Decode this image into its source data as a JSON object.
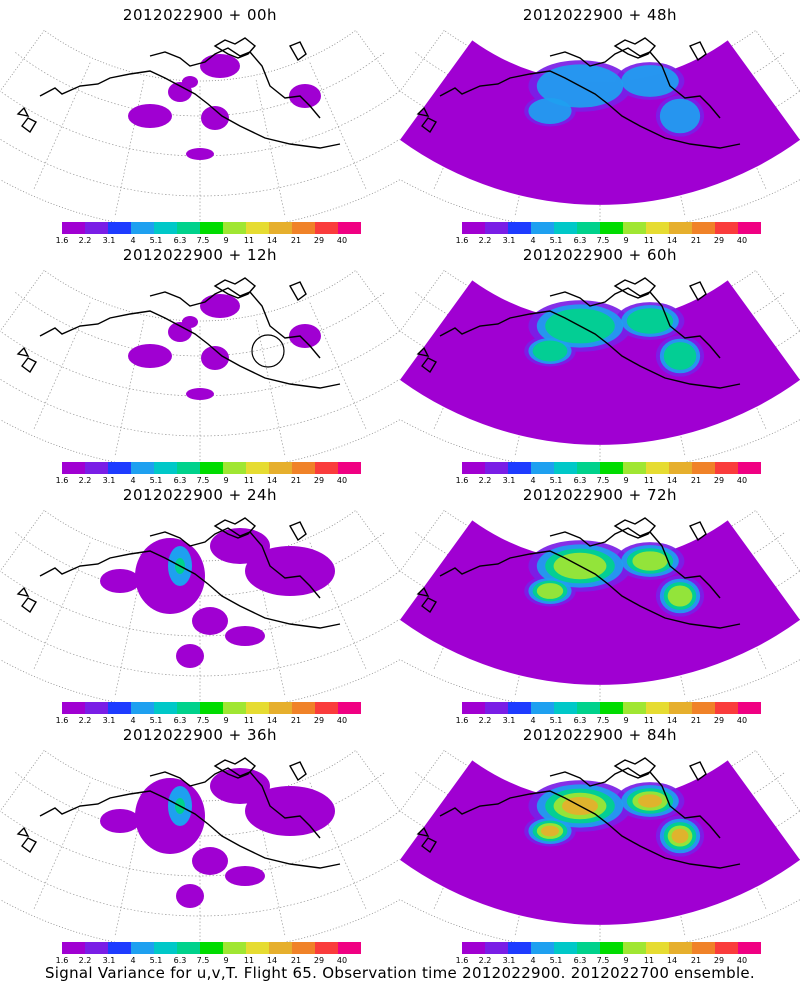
{
  "footer": "Signal Variance for u,v,T. Flight 65. Observation time 2012022900. 2012022700 ensemble.",
  "colorbar": {
    "labels": [
      "1.6",
      "2.2",
      "3.1",
      "4",
      "5.1",
      "6.3",
      "7.5",
      "9",
      "11",
      "14",
      "21",
      "29",
      "40"
    ],
    "colors": [
      "#a000d2",
      "#7a1ee6",
      "#1e3cff",
      "#1ea0f0",
      "#00c8c8",
      "#00d28c",
      "#00dc00",
      "#a0e632",
      "#e6dc32",
      "#e6af2d",
      "#f08228",
      "#fa3c3c",
      "#f00082"
    ]
  },
  "panels": [
    {
      "title": "2012022900 + 00h",
      "intensity": 0
    },
    {
      "title": "2012022900 + 48h",
      "intensity": 2
    },
    {
      "title": "2012022900 + 12h",
      "intensity": 0
    },
    {
      "title": "2012022900 + 60h",
      "intensity": 3
    },
    {
      "title": "2012022900 + 24h",
      "intensity": 1
    },
    {
      "title": "2012022900 + 72h",
      "intensity": 4
    },
    {
      "title": "2012022900 + 36h",
      "intensity": 1
    },
    {
      "title": "2012022900 + 84h",
      "intensity": 5
    }
  ]
}
